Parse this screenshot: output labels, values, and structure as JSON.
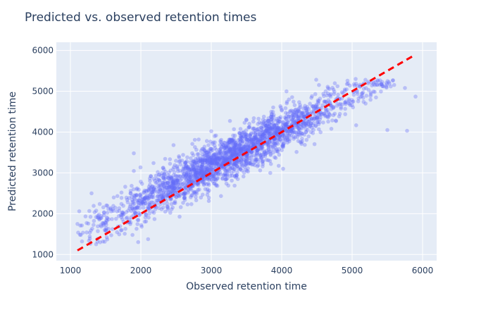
{
  "colors": {
    "plot_background": "#e5ecf6",
    "grid": "#ffffff",
    "points": "#636efa",
    "reference_line": "#ff0000",
    "text": "#2a3f5f"
  },
  "chart_data": {
    "type": "scatter",
    "title": "Predicted vs. observed retention times",
    "xlabel": "Observed retention time",
    "ylabel": "Predicted retention time",
    "xlim": [
      800,
      6200
    ],
    "ylim": [
      850,
      6200
    ],
    "xticks": [
      1000,
      2000,
      3000,
      4000,
      5000,
      6000
    ],
    "yticks": [
      1000,
      2000,
      3000,
      4000,
      5000,
      6000
    ],
    "grid": true,
    "legend": "none",
    "point_count": 2400,
    "point_opacity": 0.35,
    "distribution": {
      "x_range": [
        1050,
        5900
      ],
      "trend": {
        "slope": 0.87,
        "intercept": 560
      },
      "spread_sd": 280
    },
    "reference_line": {
      "x": [
        1100,
        5900
      ],
      "y": [
        1100,
        5900
      ],
      "style": "dashed"
    },
    "sample_points": [
      {
        "x": 1100,
        "y": 1750
      },
      {
        "x": 1300,
        "y": 2500
      },
      {
        "x": 1900,
        "y": 3480
      },
      {
        "x": 3000,
        "y": 4020
      },
      {
        "x": 4020,
        "y": 3100
      },
      {
        "x": 5050,
        "y": 5300
      },
      {
        "x": 5500,
        "y": 4050
      },
      {
        "x": 5780,
        "y": 4030
      },
      {
        "x": 5900,
        "y": 4870
      },
      {
        "x": 5750,
        "y": 5080
      }
    ]
  }
}
